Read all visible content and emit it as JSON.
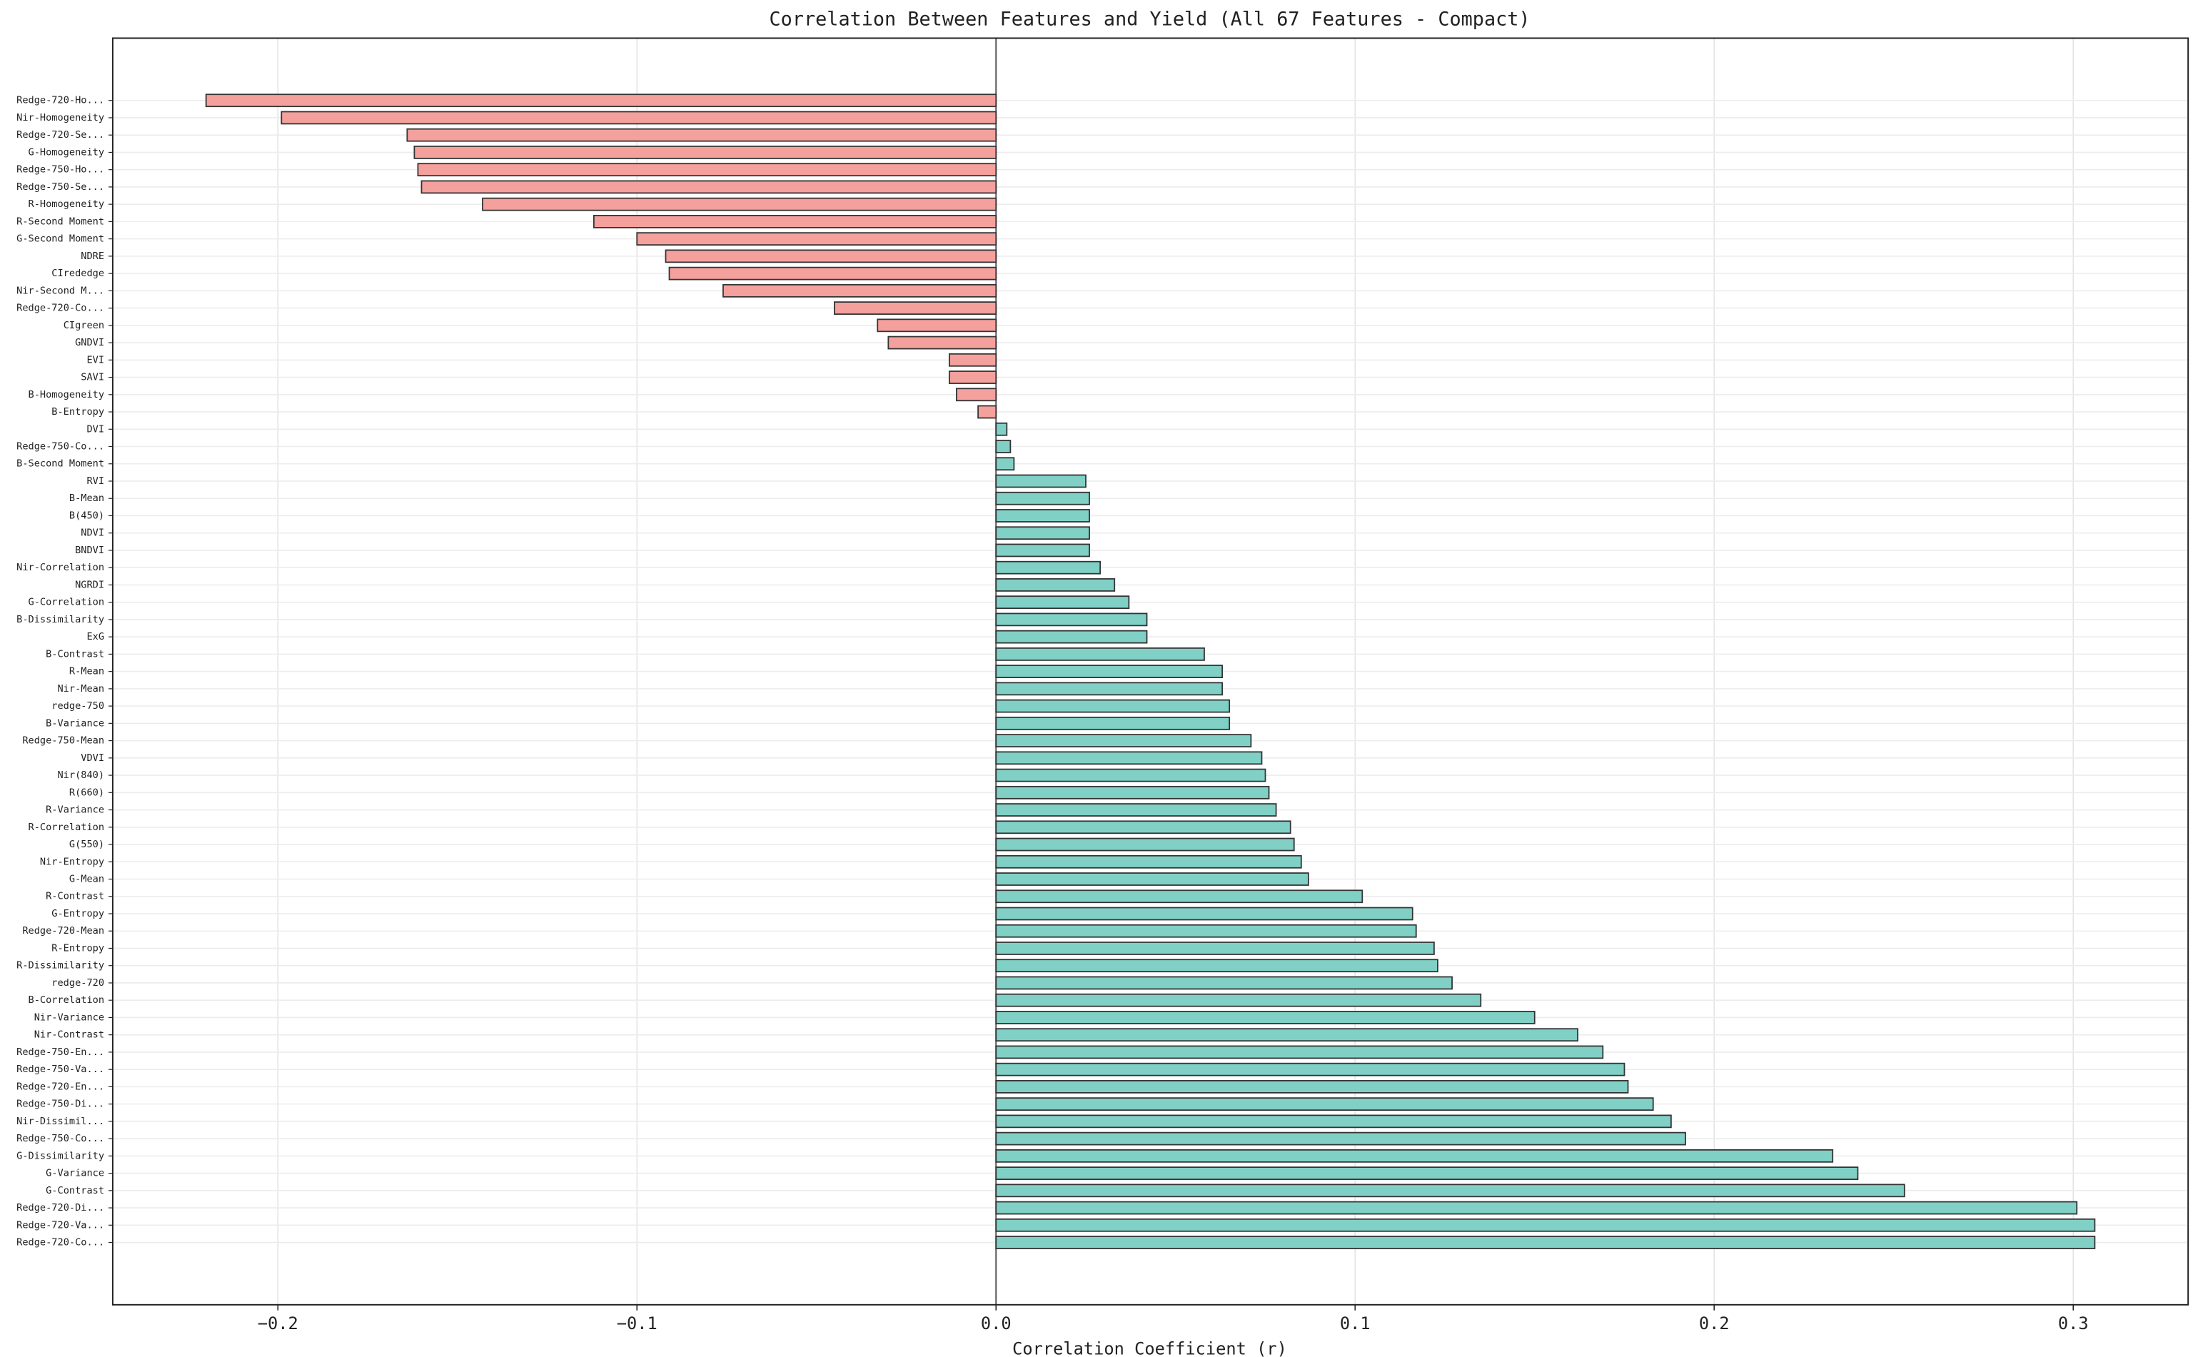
{
  "chart_data": {
    "type": "barh",
    "title": "Correlation Between Features and Yield (All 67 Features - Compact)",
    "x_label": "Correlation Coefficient (r)",
    "categories": [
      "Redge-720-Ho...",
      "Nir-Homogeneity",
      "Redge-720-Se...",
      "G-Homogeneity",
      "Redge-750-Ho...",
      "Redge-750-Se...",
      "R-Homogeneity",
      "R-Second Moment",
      "G-Second Moment",
      "NDRE",
      "CIrededge",
      "Nir-Second M...",
      "Redge-720-Co...",
      "CIgreen",
      "GNDVI",
      "EVI",
      "SAVI",
      "B-Homogeneity",
      "B-Entropy",
      "DVI",
      "Redge-750-Co...",
      "B-Second Moment",
      "RVI",
      "B-Mean",
      "B(450)",
      "NDVI",
      "BNDVI",
      "Nir-Correlation",
      "NGRDI",
      "G-Correlation",
      "B-Dissimilarity",
      "ExG",
      "B-Contrast",
      "R-Mean",
      "Nir-Mean",
      "redge-750",
      "B-Variance",
      "Redge-750-Mean",
      "VDVI",
      "Nir(840)",
      "R(660)",
      "R-Variance",
      "R-Correlation",
      "G(550)",
      "Nir-Entropy",
      "G-Mean",
      "R-Contrast",
      "G-Entropy",
      "Redge-720-Mean",
      "R-Entropy",
      "R-Dissimilarity",
      "redge-720",
      "B-Correlation",
      "Nir-Variance",
      "Nir-Contrast",
      "Redge-750-En...",
      "Redge-750-Va...",
      "Redge-720-En...",
      "Redge-750-Di...",
      "Nir-Dissimil...",
      "Redge-750-Co...",
      "G-Dissimilarity",
      "G-Variance",
      "G-Contrast",
      "Redge-720-Di...",
      "Redge-720-Va...",
      "Redge-720-Co..."
    ],
    "values": [
      -0.22,
      -0.199,
      -0.164,
      -0.162,
      -0.161,
      -0.16,
      -0.143,
      -0.112,
      -0.1,
      -0.092,
      -0.091,
      -0.076,
      -0.045,
      -0.033,
      -0.03,
      -0.013,
      -0.013,
      -0.011,
      -0.005,
      0.003,
      0.004,
      0.005,
      0.025,
      0.026,
      0.026,
      0.026,
      0.026,
      0.029,
      0.033,
      0.037,
      0.042,
      0.042,
      0.058,
      0.063,
      0.063,
      0.065,
      0.065,
      0.071,
      0.074,
      0.075,
      0.076,
      0.078,
      0.082,
      0.083,
      0.085,
      0.087,
      0.102,
      0.116,
      0.117,
      0.122,
      0.123,
      0.127,
      0.135,
      0.15,
      0.162,
      0.169,
      0.175,
      0.176,
      0.183,
      0.188,
      0.192,
      0.233,
      0.24,
      0.253,
      0.301,
      0.306,
      0.306
    ],
    "color_negative": "#f4a09c",
    "color_positive": "#80d0c6",
    "xlim": [
      -0.246,
      0.332
    ],
    "xticks": [
      {
        "value": -0.2,
        "label": "−0.2"
      },
      {
        "value": -0.1,
        "label": "−0.1"
      },
      {
        "value": 0,
        "label": "0.0"
      },
      0.1,
      0.2,
      0.3
    ],
    "grid": true
  }
}
